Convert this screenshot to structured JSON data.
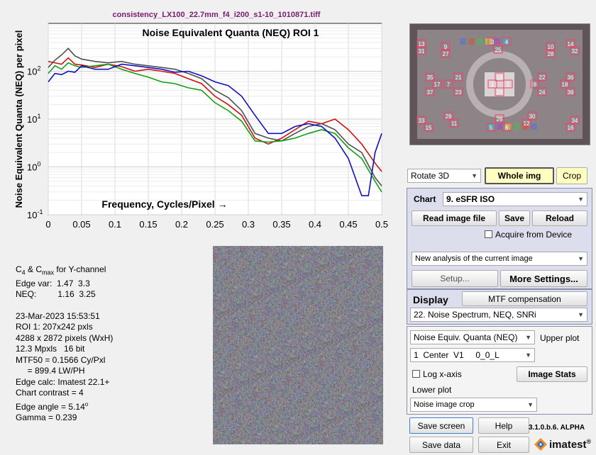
{
  "filename": "consistency_LX100_22.7mm_f4_i200_s1-10_1010871.tiff",
  "chart_data": {
    "type": "line",
    "title": "Noise Equivalent Quanta (NEQ)  ROI 1",
    "xlabel": "Frequency, Cycles/Pixel →",
    "ylabel": "Noise Equivalent Quanta (NEQ) per pixel",
    "yscale": "log",
    "xlim": [
      0,
      0.5
    ],
    "ylim": [
      0.1,
      1000
    ],
    "x_ticks": [
      "0",
      "0.05",
      "0.1",
      "0.15",
      "0.2",
      "0.25",
      "0.3",
      "0.35",
      "0.4",
      "0.45",
      "0.5"
    ],
    "y_ticks": [
      {
        "base": "10",
        "exp": "-1"
      },
      {
        "base": "10",
        "exp": "0"
      },
      {
        "base": "10",
        "exp": "1"
      },
      {
        "base": "10",
        "exp": "2"
      }
    ],
    "grid": true,
    "series": [
      {
        "color": "#d01010",
        "x": [
          0,
          0.01,
          0.02,
          0.03,
          0.04,
          0.05,
          0.07,
          0.09,
          0.11,
          0.13,
          0.15,
          0.17,
          0.19,
          0.21,
          0.23,
          0.25,
          0.27,
          0.29,
          0.31,
          0.33,
          0.35,
          0.37,
          0.39,
          0.41,
          0.43,
          0.45,
          0.47,
          0.49,
          0.5
        ],
        "y": [
          160,
          150,
          140,
          190,
          140,
          135,
          120,
          140,
          125,
          100,
          110,
          100,
          90,
          70,
          55,
          30,
          20,
          12,
          4,
          3,
          4,
          6,
          9,
          8,
          10,
          6,
          3,
          1.2,
          0.8
        ]
      },
      {
        "color": "#505050",
        "x": [
          0,
          0.01,
          0.02,
          0.03,
          0.04,
          0.05,
          0.07,
          0.09,
          0.11,
          0.13,
          0.15,
          0.17,
          0.19,
          0.21,
          0.23,
          0.25,
          0.27,
          0.29,
          0.31,
          0.33,
          0.35,
          0.37,
          0.39,
          0.41,
          0.43,
          0.45,
          0.47,
          0.49,
          0.5
        ],
        "y": [
          120,
          170,
          220,
          300,
          210,
          180,
          160,
          150,
          160,
          140,
          130,
          120,
          110,
          90,
          70,
          40,
          28,
          15,
          5,
          4,
          3.5,
          5,
          7,
          8,
          6,
          3,
          2,
          0.6,
          0.4
        ]
      },
      {
        "color": "#10a010",
        "x": [
          0,
          0.01,
          0.02,
          0.03,
          0.04,
          0.05,
          0.07,
          0.09,
          0.11,
          0.13,
          0.15,
          0.17,
          0.19,
          0.21,
          0.23,
          0.25,
          0.27,
          0.29,
          0.31,
          0.33,
          0.35,
          0.37,
          0.39,
          0.41,
          0.43,
          0.45,
          0.47,
          0.49,
          0.5
        ],
        "y": [
          90,
          130,
          110,
          150,
          130,
          120,
          130,
          140,
          110,
          90,
          75,
          60,
          55,
          45,
          40,
          22,
          15,
          9,
          3.5,
          3.3,
          3.5,
          4,
          5,
          6,
          5,
          2.5,
          1.5,
          0.5,
          0.3
        ]
      },
      {
        "color": "#1010c0",
        "x": [
          0,
          0.01,
          0.02,
          0.03,
          0.04,
          0.05,
          0.07,
          0.09,
          0.11,
          0.13,
          0.15,
          0.17,
          0.19,
          0.21,
          0.23,
          0.25,
          0.27,
          0.29,
          0.31,
          0.33,
          0.35,
          0.37,
          0.39,
          0.41,
          0.43,
          0.45,
          0.47,
          0.48,
          0.49,
          0.5
        ],
        "y": [
          60,
          90,
          85,
          100,
          95,
          130,
          110,
          110,
          140,
          130,
          120,
          110,
          95,
          100,
          80,
          60,
          50,
          30,
          12,
          5,
          5,
          7,
          8,
          7,
          4,
          1.5,
          0.25,
          0.25,
          2,
          5
        ]
      }
    ]
  },
  "info": {
    "line1_a": "C",
    "line1_sub1": "4",
    "line1_b": " & C",
    "line1_sub2": "max",
    "line1_c": " for Y-channel",
    "edge_var": "Edge var:  1.47  3.3",
    "neq": "NEQ:         1.16  3.25",
    "datetime": "23-Mar-2023 15:53:51",
    "roi": "ROI 1:  207x242 pxls",
    "pixels": "4288 x 2872 pixels (WxH)",
    "mpxls": "12.3 Mpxls   16 bit",
    "mtf50": "MTF50 = 0.1566 Cy/Pxl",
    "lwph": "     = 899.4 LW/PH",
    "edge_calc": "Edge calc: Imatest 22.1+",
    "contrast": "Chart contrast = 4",
    "edge_angle": "Edge angle = 5.14",
    "edge_angle_sup": "o",
    "gamma": "Gamma = 0.239"
  },
  "roi_labels": [
    "13",
    "31",
    "9",
    "27",
    "3",
    "25",
    "4",
    "10",
    "28",
    "14",
    "32",
    "35",
    "17",
    "37",
    "21",
    "23",
    "19",
    "20",
    "22",
    "24",
    "36",
    "18",
    "38",
    "33",
    "15",
    "29",
    "11",
    "26",
    "5",
    "6",
    "30",
    "12",
    "34",
    "16",
    "7",
    "8",
    "1",
    "2"
  ],
  "controls": {
    "rotate": "Rotate 3D",
    "whole_img": "Whole img",
    "crop": "Crop",
    "chart_label": "Chart",
    "chart_value": "9. eSFR ISO",
    "read_image": "Read image file",
    "save": "Save",
    "reload": "Reload",
    "acquire": "Acquire from Device",
    "analysis": "New analysis of the current image",
    "setup": "Setup...",
    "more_settings": "More Settings...",
    "display_label": "Display",
    "mtf_comp": "MTF compensation",
    "display_value": "22. Noise Spectrum, NEQ, SNRi",
    "upper_value": "Noise Equiv. Quanta (NEQ)",
    "upper_label": "Upper plot",
    "roi_value": "1  Center  V1     0_0_L",
    "log_x": "Log x-axis",
    "image_stats": "Image Stats",
    "lower_label": "Lower plot",
    "lower_value": "Noise image crop",
    "save_screen": "Save screen",
    "help": "Help",
    "version": "3.1.0.b.6. ALPHA",
    "save_data": "Save data",
    "exit": "Exit",
    "brand": "imatest",
    "brand_mark": "®"
  }
}
